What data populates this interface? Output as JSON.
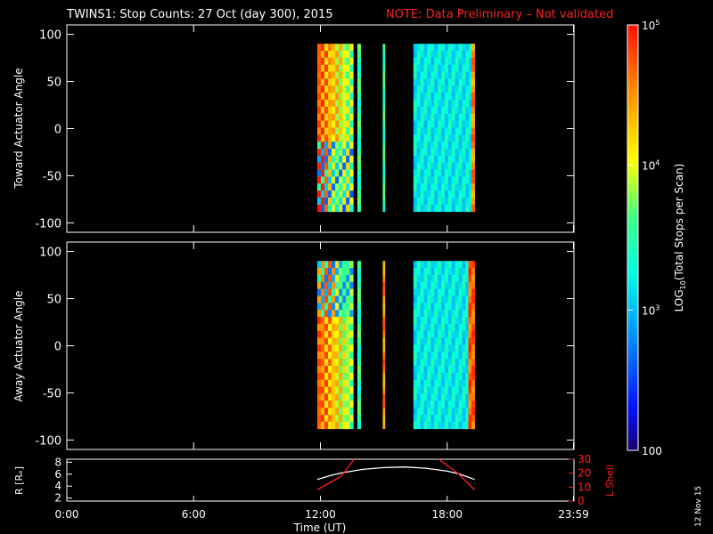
{
  "title": "TWINS1: Stop Counts: 27 Oct (day 300), 2015",
  "note": "NOTE: Data Preliminary – Not validated",
  "date_stamp": "12 Nov 15",
  "colors": {
    "title": "#ffffff",
    "note": "#ff2020",
    "axis": "#ffffff",
    "lshell": "#ff2020",
    "radius": "#ffffff"
  },
  "chart_data": [
    {
      "type": "heatmap",
      "name": "toward-panel",
      "ylabel": "Toward Actuator Angle",
      "xlim": [
        0,
        24
      ],
      "ylim": [
        -110,
        110
      ],
      "yticks": [
        {
          "v": 100,
          "label": "100"
        },
        {
          "v": 50,
          "label": "50"
        },
        {
          "v": 0,
          "label": "0"
        },
        {
          "v": -50,
          "label": "-50"
        },
        {
          "v": -100,
          "label": "-100"
        }
      ],
      "y_extent": [
        -88,
        90
      ],
      "blocks": [
        {
          "x0": 11.85,
          "x1": 13.55,
          "level": 0.55,
          "hot": 0.9
        },
        {
          "x0": 13.75,
          "x1": 13.9,
          "level": 0.5
        },
        {
          "x0": 14.95,
          "x1": 15.05,
          "level": 0.5
        },
        {
          "x0": 16.4,
          "x1": 19.2,
          "level": 0.4
        },
        {
          "x0": 19.15,
          "x1": 19.3,
          "level": 0.85
        }
      ]
    },
    {
      "type": "heatmap",
      "name": "away-panel",
      "ylabel": "Away Actuator Angle",
      "xlim": [
        0,
        24
      ],
      "ylim": [
        -110,
        110
      ],
      "yticks": [
        {
          "v": 100,
          "label": "100"
        },
        {
          "v": 50,
          "label": "50"
        },
        {
          "v": 0,
          "label": "0"
        },
        {
          "v": -50,
          "label": "-50"
        },
        {
          "v": -100,
          "label": "-100"
        }
      ],
      "y_extent": [
        -88,
        90
      ],
      "blocks": [
        {
          "x0": 11.85,
          "x1": 13.55,
          "level": 0.5,
          "hot": 0.9
        },
        {
          "x0": 13.75,
          "x1": 13.9,
          "level": 0.5
        },
        {
          "x0": 14.95,
          "x1": 15.05,
          "level": 0.85
        },
        {
          "x0": 16.4,
          "x1": 19.2,
          "level": 0.4
        },
        {
          "x0": 19.0,
          "x1": 19.3,
          "level": 0.9
        }
      ]
    },
    {
      "type": "line",
      "name": "orbit-panel",
      "ylabel_left": "R [Rₑ]",
      "ylabel_right": "L Shell",
      "xlabel": "Time (UT)",
      "xlim": [
        0,
        24
      ],
      "ylim_left": [
        1.5,
        8.5
      ],
      "ylim_right": [
        0,
        30
      ],
      "yticks_left": [
        {
          "v": 2,
          "label": "2"
        },
        {
          "v": 4,
          "label": "4"
        },
        {
          "v": 6,
          "label": "6"
        },
        {
          "v": 8,
          "label": "8"
        }
      ],
      "yticks_right": [
        {
          "v": 0,
          "label": "0"
        },
        {
          "v": 10,
          "label": "10"
        },
        {
          "v": 20,
          "label": "20"
        },
        {
          "v": 30,
          "label": "30"
        }
      ],
      "xticks": [
        {
          "v": 0,
          "label": "0:00"
        },
        {
          "v": 6,
          "label": "6:00"
        },
        {
          "v": 12,
          "label": "12:00"
        },
        {
          "v": 18,
          "label": "18:00"
        },
        {
          "v": 23.98,
          "label": "23:59"
        }
      ],
      "radius": {
        "x": [
          11.85,
          12.5,
          13,
          14,
          15,
          16,
          17,
          18,
          18.5,
          19,
          19.3
        ],
        "y": [
          5.1,
          5.8,
          6.2,
          6.8,
          7.1,
          7.2,
          7.0,
          6.5,
          6.1,
          5.5,
          5.1
        ]
      },
      "lshell": [
        {
          "x": [
            11.85,
            13.0,
            13.6
          ],
          "y": [
            8,
            18,
            30
          ]
        },
        {
          "x": [
            17.6,
            18.5,
            19.3
          ],
          "y": [
            30,
            20,
            8
          ]
        }
      ]
    }
  ],
  "colorbar": {
    "label": "LOG10(Total Stops per Scan)",
    "label_main": "LOG",
    "label_sub": "10",
    "label_rest": "(Total Stops per Scan)",
    "ticks": [
      {
        "level": 1.0,
        "base": "10",
        "exp": "5"
      },
      {
        "level": 0.67,
        "base": "10",
        "exp": "4"
      },
      {
        "level": 0.33,
        "base": "10",
        "exp": "3"
      },
      {
        "level": 0.0,
        "text": "100"
      }
    ]
  }
}
